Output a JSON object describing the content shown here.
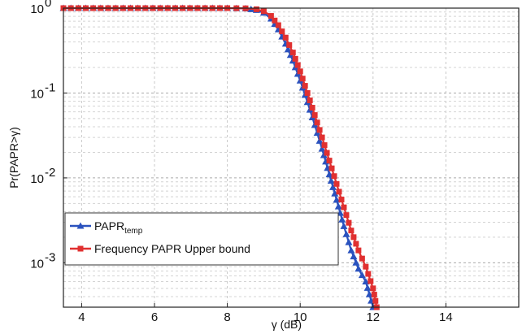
{
  "chart_data": {
    "type": "line",
    "title": "",
    "xlabel": "γ (dB)",
    "ylabel": "Pr(PAPR>γ)",
    "xlim": [
      3.5,
      16
    ],
    "ylim": [
      0.0003,
      1
    ],
    "y_scale": "log",
    "grid": true,
    "legend_position": "bottom-left",
    "x_ticks": [
      {
        "value": 4,
        "label": "4"
      },
      {
        "value": 6,
        "label": "6"
      },
      {
        "value": 8,
        "label": "8"
      },
      {
        "value": 10,
        "label": "10"
      },
      {
        "value": 12,
        "label": "12"
      },
      {
        "value": 14,
        "label": "14"
      }
    ],
    "y_ticks": [
      {
        "value": 1,
        "base": "10",
        "exp": "0"
      },
      {
        "value": 0.1,
        "base": "10",
        "exp": "-1"
      },
      {
        "value": 0.01,
        "base": "10",
        "exp": "-2"
      },
      {
        "value": 0.001,
        "base": "10",
        "exp": "-3"
      }
    ],
    "series": [
      {
        "name": "PAPR",
        "name_sub": "temp",
        "color": "#2a52be",
        "marker": "triangle",
        "x": [
          3.5,
          8.0,
          8.5,
          8.8,
          9.0,
          9.2,
          9.4,
          9.6,
          9.8,
          10.0,
          10.2,
          10.4,
          10.6,
          10.8,
          11.0,
          11.2,
          11.4,
          11.6,
          11.8,
          12.0
        ],
        "y": [
          1,
          1,
          0.99,
          0.95,
          0.88,
          0.75,
          0.56,
          0.38,
          0.24,
          0.14,
          0.078,
          0.042,
          0.022,
          0.011,
          0.0055,
          0.0027,
          0.0014,
          0.00085,
          0.0006,
          0.0003
        ]
      },
      {
        "name": "Frequency PAPR Upper bound",
        "color": "#e03030",
        "marker": "square",
        "x": [
          3.5,
          8.0,
          8.5,
          8.8,
          9.0,
          9.2,
          9.4,
          9.6,
          9.8,
          10.0,
          10.2,
          10.4,
          10.6,
          10.8,
          11.0,
          11.2,
          11.4,
          11.6,
          11.8,
          12.0,
          12.1
        ],
        "y": [
          1,
          1,
          0.995,
          0.97,
          0.92,
          0.81,
          0.63,
          0.45,
          0.3,
          0.18,
          0.1,
          0.055,
          0.03,
          0.016,
          0.0085,
          0.0045,
          0.0024,
          0.0014,
          0.0009,
          0.0005,
          0.0003
        ]
      }
    ]
  }
}
